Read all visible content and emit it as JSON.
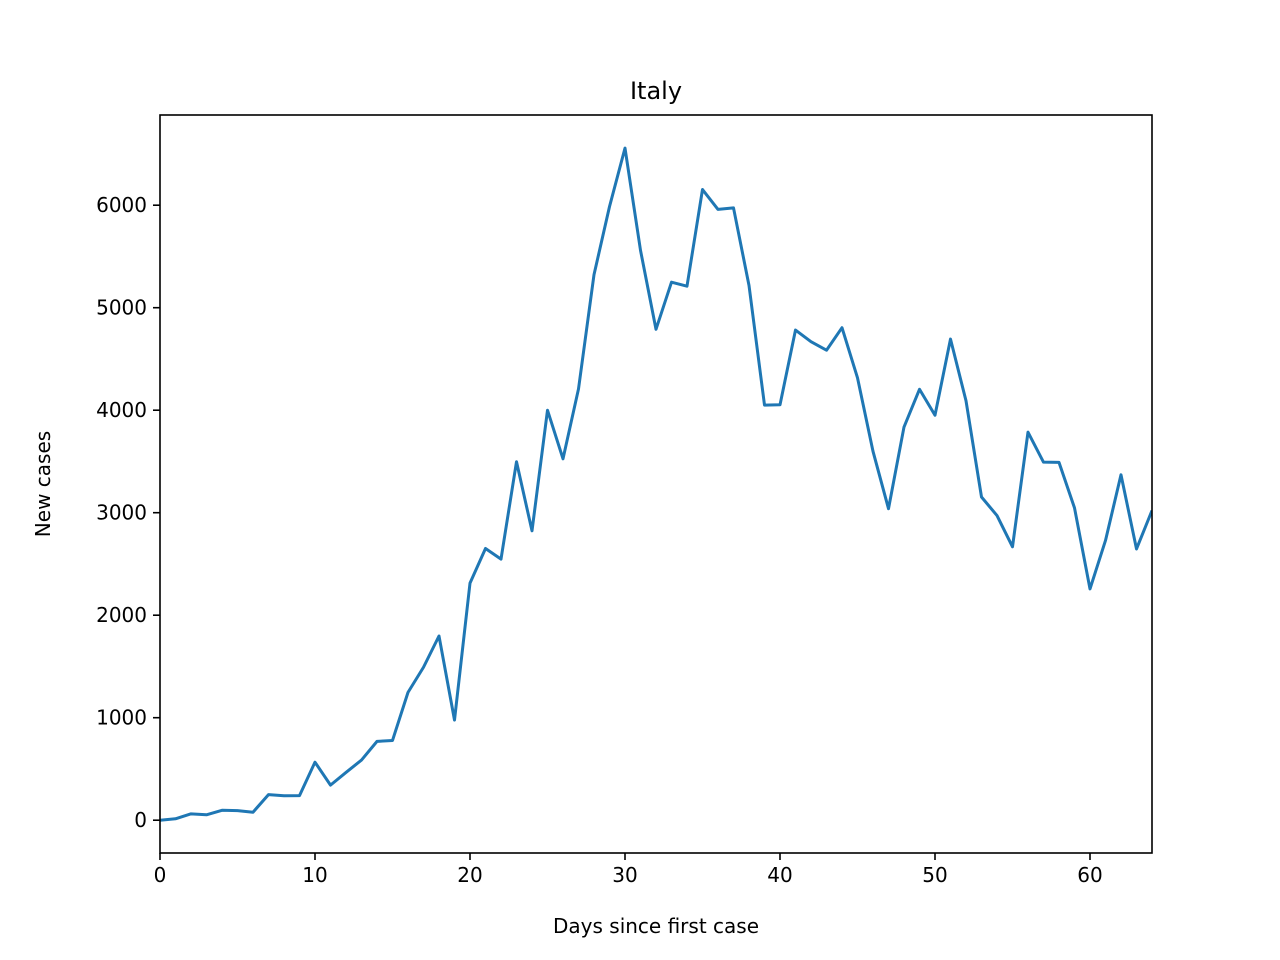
{
  "chart_data": {
    "type": "line",
    "title": "Italy",
    "xlabel": "Days since first case",
    "ylabel": "New cases",
    "xlim": [
      0,
      64
    ],
    "ylim": [
      -320,
      6880
    ],
    "xticks": [
      0,
      10,
      20,
      30,
      40,
      50,
      60
    ],
    "yticks": [
      0,
      1000,
      2000,
      3000,
      4000,
      5000,
      6000
    ],
    "grid": false,
    "colors": {
      "line": "#1f77b4"
    },
    "series": [
      {
        "x": [
          0,
          1,
          2,
          3,
          4,
          5,
          6,
          7,
          8,
          9,
          10,
          11,
          12,
          13,
          14,
          15,
          16,
          17,
          18,
          19,
          20,
          21,
          22,
          23,
          24,
          25,
          26,
          27,
          28,
          29,
          30,
          31,
          32,
          33,
          34,
          35,
          36,
          37,
          38,
          39,
          40,
          41,
          42,
          43,
          44,
          45,
          46,
          47,
          48,
          49,
          50,
          51,
          52,
          53,
          54,
          55,
          56,
          57,
          58,
          59,
          60,
          61,
          62,
          63,
          64
        ],
        "values": [
          0,
          14,
          62,
          53,
          97,
          93,
          78,
          250,
          238,
          240,
          566,
          342,
          466,
          587,
          769,
          778,
          1247,
          1492,
          1797,
          977,
          2313,
          2651,
          2547,
          3497,
          2823,
          4000,
          3526,
          4207,
          5322,
          5986,
          6557,
          5560,
          4789,
          5249,
          5210,
          6153,
          5959,
          5974,
          5217,
          4050,
          4053,
          4782,
          4668,
          4585,
          4805,
          4316,
          3599,
          3039,
          3836,
          4204,
          3951,
          4694,
          4092,
          3153,
          2972,
          2667,
          3786,
          3493,
          3491,
          3047,
          2256,
          2729,
          3370,
          2646,
          3021
        ]
      }
    ]
  }
}
